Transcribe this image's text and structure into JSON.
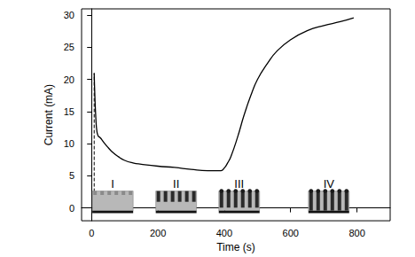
{
  "chart_data": {
    "type": "line",
    "x_label": "Time (s)",
    "y_label": "Current (mA)",
    "x": [
      8,
      10,
      13,
      16,
      20,
      25,
      30,
      40,
      50,
      65,
      80,
      100,
      125,
      150,
      200,
      250,
      300,
      350,
      390,
      400,
      410,
      420,
      440,
      460,
      480,
      500,
      530,
      560,
      600,
      650,
      700,
      750,
      790
    ],
    "values": [
      21,
      17.5,
      14,
      12,
      11.2,
      11,
      10.7,
      10,
      9.4,
      8.6,
      8,
      7.4,
      7,
      6.8,
      6.5,
      6.3,
      6,
      5.8,
      5.8,
      6.2,
      7,
      8,
      11,
      14.5,
      17.5,
      20,
      22.5,
      24.5,
      26.2,
      27.6,
      28.4,
      29,
      29.6
    ],
    "color": "#000000",
    "xlim": [
      -30,
      900
    ],
    "xticks": [
      0,
      200,
      400,
      600,
      800
    ],
    "ylim": [
      -2,
      31
    ],
    "yticks": [
      0,
      5,
      10,
      15,
      20,
      25,
      30
    ],
    "drop_line": {
      "x": 8,
      "y": [
        0,
        21
      ],
      "line_style": "dashed"
    },
    "annotations": [
      {
        "text": "I",
        "x": 64,
        "y": 3.6
      },
      {
        "text": "II",
        "x": 255,
        "y": 3.6
      },
      {
        "text": "III",
        "x": 445,
        "y": 3.6
      },
      {
        "text": "IV",
        "x": 715,
        "y": 3.6
      }
    ]
  }
}
